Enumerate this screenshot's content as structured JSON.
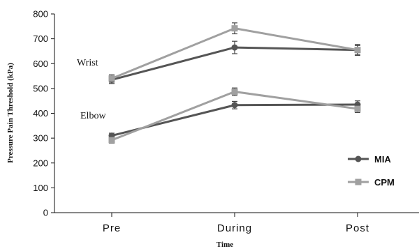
{
  "chart_data": {
    "type": "line",
    "categories": [
      "Pre",
      "During",
      "Post"
    ],
    "xlabel": "Time",
    "ylabel": "Pressure Pain Threshold (kPa)",
    "ylim": [
      0,
      800
    ],
    "yticks": [
      0,
      100,
      200,
      300,
      400,
      500,
      600,
      700,
      800
    ],
    "grid": false,
    "legend_position": "bottom-right",
    "colors": {
      "MIA": "#555555",
      "CPM": "#a0a0a0"
    },
    "annotations": [
      "Wrist",
      "Elbow"
    ],
    "series": [
      {
        "name": "MIA",
        "group": "Wrist",
        "marker": "circle",
        "values": [
          535,
          665,
          655
        ],
        "error": [
          15,
          25,
          22
        ]
      },
      {
        "name": "CPM",
        "group": "Wrist",
        "marker": "square",
        "values": [
          540,
          742,
          655
        ],
        "error": [
          15,
          22,
          18
        ]
      },
      {
        "name": "MIA",
        "group": "Elbow",
        "marker": "circle",
        "values": [
          310,
          433,
          435
        ],
        "error": [
          10,
          15,
          15
        ]
      },
      {
        "name": "CPM",
        "group": "Elbow",
        "marker": "square",
        "values": [
          292,
          487,
          418
        ],
        "error": [
          12,
          15,
          15
        ]
      }
    ],
    "legend": [
      {
        "name": "MIA",
        "marker": "circle"
      },
      {
        "name": "CPM",
        "marker": "square"
      }
    ]
  }
}
